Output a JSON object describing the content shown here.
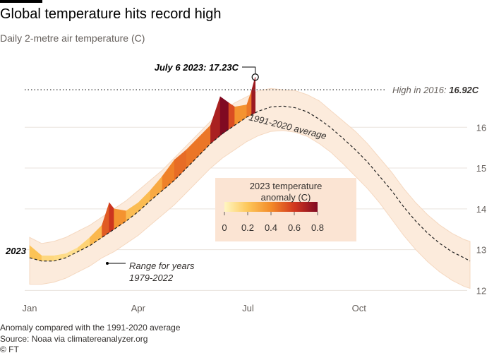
{
  "chart_data": {
    "type": "line",
    "title": "Global temperature hits record high",
    "subtitle": "Daily 2-metre air temperature (C)",
    "x": [
      0,
      10,
      20,
      30,
      40,
      50,
      60,
      70,
      80,
      90,
      100,
      110,
      120,
      130,
      140,
      150,
      160,
      170,
      180,
      190,
      200,
      210,
      220,
      230,
      240,
      250,
      260,
      270,
      280,
      290,
      300,
      310,
      320,
      330,
      340,
      350,
      360,
      365
    ],
    "xlim": [
      0,
      365
    ],
    "xticks": [
      {
        "value": 0,
        "label": "Jan"
      },
      {
        "value": 90,
        "label": "Apr"
      },
      {
        "value": 181,
        "label": "Jul"
      },
      {
        "value": 273,
        "label": "Oct"
      }
    ],
    "ylim": [
      11.85,
      17.65
    ],
    "yticks": [
      12,
      13,
      14,
      15,
      16
    ],
    "grid": true,
    "series": [
      {
        "name": "Range for years 1979-2022",
        "color": "#fcebdc",
        "edge_color": "#f5d8c0",
        "high": [
          13.3,
          13.15,
          13.2,
          13.3,
          13.45,
          13.6,
          13.8,
          14.0,
          14.2,
          14.45,
          14.7,
          14.95,
          15.25,
          15.55,
          15.85,
          16.15,
          16.4,
          16.6,
          16.75,
          16.9,
          16.95,
          16.92,
          16.9,
          16.8,
          16.65,
          16.4,
          16.15,
          15.9,
          15.6,
          15.25,
          14.9,
          14.5,
          14.15,
          13.85,
          13.6,
          13.4,
          13.25,
          13.2
        ],
        "low": [
          12.15,
          12.15,
          12.2,
          12.3,
          12.45,
          12.6,
          12.8,
          12.95,
          13.15,
          13.35,
          13.6,
          13.85,
          14.1,
          14.4,
          14.7,
          15.0,
          15.25,
          15.45,
          15.65,
          15.8,
          15.9,
          15.92,
          15.88,
          15.78,
          15.6,
          15.38,
          15.1,
          14.8,
          14.5,
          14.15,
          13.75,
          13.35,
          13.0,
          12.7,
          12.45,
          12.25,
          12.1,
          12.05
        ]
      },
      {
        "name": "1991-2020 average",
        "color": "#222222",
        "dashed": true,
        "values": [
          12.8,
          12.72,
          12.72,
          12.8,
          12.95,
          13.1,
          13.3,
          13.5,
          13.7,
          13.93,
          14.2,
          14.45,
          14.7,
          15.0,
          15.3,
          15.6,
          15.85,
          16.05,
          16.25,
          16.4,
          16.5,
          16.52,
          16.48,
          16.38,
          16.2,
          15.98,
          15.72,
          15.45,
          15.15,
          14.8,
          14.45,
          14.05,
          13.7,
          13.4,
          13.15,
          12.95,
          12.8,
          12.72
        ]
      },
      {
        "name": "2023",
        "x": [
          0,
          10,
          20,
          30,
          40,
          50,
          60,
          66,
          70,
          80,
          90,
          100,
          110,
          120,
          130,
          140,
          150,
          158,
          165,
          170,
          180,
          184,
          187
        ],
        "values": [
          13.1,
          12.85,
          12.85,
          12.9,
          13.05,
          13.3,
          13.6,
          14.15,
          14.0,
          13.95,
          14.15,
          14.45,
          14.8,
          15.2,
          15.45,
          15.75,
          16.05,
          16.75,
          16.6,
          16.5,
          16.55,
          16.9,
          17.23
        ]
      }
    ],
    "colorbar": {
      "title": "2023 temperature anomaly (C)",
      "lim": [
        0,
        0.8
      ],
      "ticks": [
        0,
        0.2,
        0.4,
        0.6,
        0.8
      ],
      "colors": [
        "#fff6c2",
        "#fdc75a",
        "#f38b2a",
        "#d2381f",
        "#800a22"
      ],
      "background": "#fbe4d3"
    },
    "annotations": {
      "peak": {
        "label": "July 6 2023: 17.23C"
      },
      "record": {
        "label": "High in 2016:",
        "value": 16.92,
        "value_label": "16.92C"
      }
    },
    "notes": [
      "Anomaly compared with the 1991-2020 average",
      "Source: Noaa via climatereanalyzer.org",
      "© FT"
    ]
  }
}
